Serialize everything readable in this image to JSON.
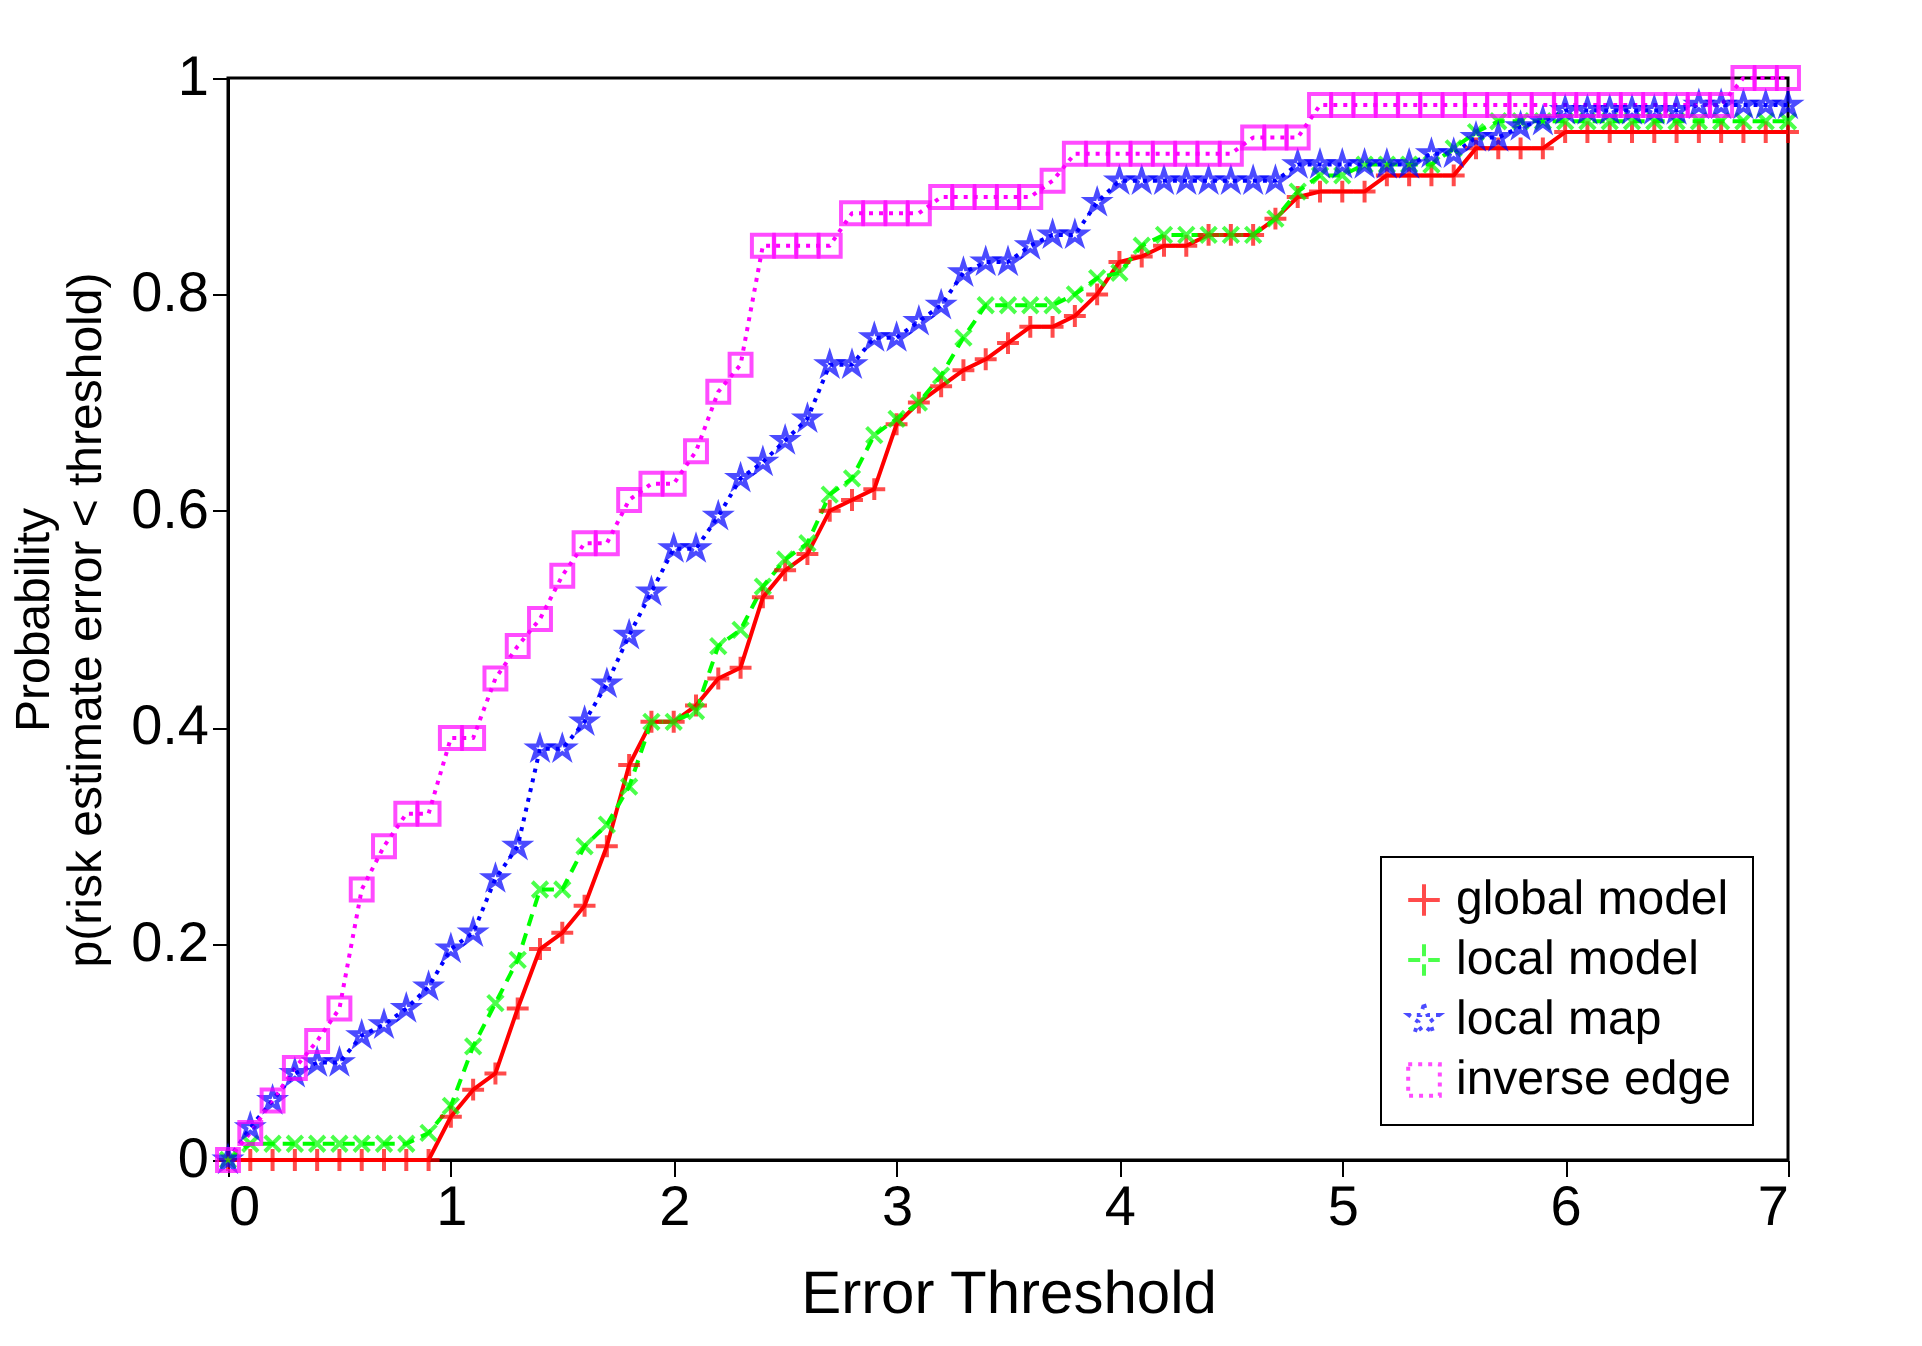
{
  "chart_data": {
    "type": "line",
    "xlabel": "Error Threshold",
    "ylabel": "Probability\np(risk estimate error < threshold)",
    "x": [
      0,
      0.1,
      0.2,
      0.3,
      0.4,
      0.5,
      0.6,
      0.7,
      0.8,
      0.9,
      1,
      1.1,
      1.2,
      1.3,
      1.4,
      1.5,
      1.6,
      1.7,
      1.8,
      1.9,
      2,
      2.1,
      2.2,
      2.3,
      2.4,
      2.5,
      2.6,
      2.7,
      2.8,
      2.9,
      3,
      3.1,
      3.2,
      3.3,
      3.4,
      3.5,
      3.6,
      3.7,
      3.8,
      3.9,
      4,
      4.1,
      4.2,
      4.3,
      4.4,
      4.5,
      4.6,
      4.7,
      4.8,
      4.9,
      5,
      5.1,
      5.2,
      5.3,
      5.4,
      5.5,
      5.6,
      5.7,
      5.8,
      5.9,
      6,
      6.1,
      6.2,
      6.3,
      6.4,
      6.5,
      6.6,
      6.7,
      6.8,
      6.9,
      7
    ],
    "series": [
      {
        "name": "global model",
        "color": "#ff0000",
        "marker": "cross",
        "line_style": "solid",
        "values": [
          0,
          0,
          0,
          0,
          0,
          0,
          0,
          0,
          0,
          0,
          0.04,
          0.065,
          0.08,
          0.14,
          0.195,
          0.21,
          0.235,
          0.29,
          0.365,
          0.405,
          0.405,
          0.42,
          0.445,
          0.455,
          0.52,
          0.545,
          0.56,
          0.6,
          0.61,
          0.62,
          0.68,
          0.7,
          0.715,
          0.73,
          0.74,
          0.755,
          0.77,
          0.77,
          0.78,
          0.8,
          0.83,
          0.835,
          0.845,
          0.845,
          0.855,
          0.855,
          0.855,
          0.87,
          0.89,
          0.895,
          0.895,
          0.895,
          0.91,
          0.91,
          0.91,
          0.91,
          0.935,
          0.935,
          0.935,
          0.935,
          0.95,
          0.95,
          0.95,
          0.95,
          0.95,
          0.95,
          0.95,
          0.95,
          0.95,
          0.95,
          0.95
        ]
      },
      {
        "name": "local model",
        "color": "#00ff00",
        "marker": "cross",
        "line_style": "dashed",
        "values": [
          0,
          0.015,
          0.015,
          0.015,
          0.015,
          0.015,
          0.015,
          0.015,
          0.015,
          0.025,
          0.05,
          0.105,
          0.145,
          0.185,
          0.25,
          0.25,
          0.29,
          0.31,
          0.345,
          0.405,
          0.405,
          0.415,
          0.475,
          0.49,
          0.53,
          0.555,
          0.57,
          0.615,
          0.63,
          0.67,
          0.685,
          0.7,
          0.725,
          0.76,
          0.79,
          0.79,
          0.79,
          0.79,
          0.8,
          0.815,
          0.82,
          0.845,
          0.855,
          0.855,
          0.855,
          0.855,
          0.855,
          0.87,
          0.895,
          0.91,
          0.91,
          0.92,
          0.92,
          0.92,
          0.92,
          0.935,
          0.95,
          0.96,
          0.96,
          0.96,
          0.96,
          0.96,
          0.96,
          0.96,
          0.96,
          0.96,
          0.96,
          0.96,
          0.96,
          0.96,
          0.96
        ]
      },
      {
        "name": "local map",
        "color": "#0000ff",
        "marker": "star",
        "line_style": "dotted",
        "values": [
          0,
          0.03,
          0.055,
          0.08,
          0.09,
          0.09,
          0.115,
          0.125,
          0.14,
          0.16,
          0.195,
          0.21,
          0.26,
          0.29,
          0.38,
          0.38,
          0.405,
          0.44,
          0.485,
          0.525,
          0.565,
          0.565,
          0.595,
          0.63,
          0.645,
          0.665,
          0.685,
          0.735,
          0.735,
          0.76,
          0.76,
          0.775,
          0.79,
          0.82,
          0.83,
          0.83,
          0.845,
          0.855,
          0.855,
          0.885,
          0.905,
          0.905,
          0.905,
          0.905,
          0.905,
          0.905,
          0.905,
          0.905,
          0.92,
          0.92,
          0.92,
          0.92,
          0.92,
          0.92,
          0.93,
          0.93,
          0.945,
          0.945,
          0.955,
          0.96,
          0.97,
          0.97,
          0.97,
          0.97,
          0.97,
          0.97,
          0.975,
          0.975,
          0.975,
          0.975,
          0.975
        ]
      },
      {
        "name": "inverse edge",
        "color": "#ff00ff",
        "marker": "square",
        "line_style": "dotted",
        "values": [
          0,
          0.025,
          0.055,
          0.085,
          0.11,
          0.14,
          0.25,
          0.29,
          0.32,
          0.32,
          0.39,
          0.39,
          0.445,
          0.475,
          0.5,
          0.54,
          0.57,
          0.57,
          0.61,
          0.625,
          0.625,
          0.655,
          0.71,
          0.735,
          0.845,
          0.845,
          0.845,
          0.845,
          0.875,
          0.875,
          0.875,
          0.875,
          0.89,
          0.89,
          0.89,
          0.89,
          0.89,
          0.905,
          0.93,
          0.93,
          0.93,
          0.93,
          0.93,
          0.93,
          0.93,
          0.93,
          0.945,
          0.945,
          0.945,
          0.975,
          0.975,
          0.975,
          0.975,
          0.975,
          0.975,
          0.975,
          0.975,
          0.975,
          0.975,
          0.975,
          0.975,
          0.975,
          0.975,
          0.975,
          0.975,
          0.975,
          0.975,
          0.975,
          1,
          1,
          1
        ]
      }
    ],
    "xlim": [
      0,
      7
    ],
    "xticks": [
      0,
      1,
      2,
      3,
      4,
      5,
      6,
      7
    ],
    "ylim": [
      0,
      1
    ],
    "yticks": [
      0,
      0.2,
      0.4,
      0.6,
      0.8,
      1
    ],
    "grid": false,
    "legend": "bottom right"
  }
}
